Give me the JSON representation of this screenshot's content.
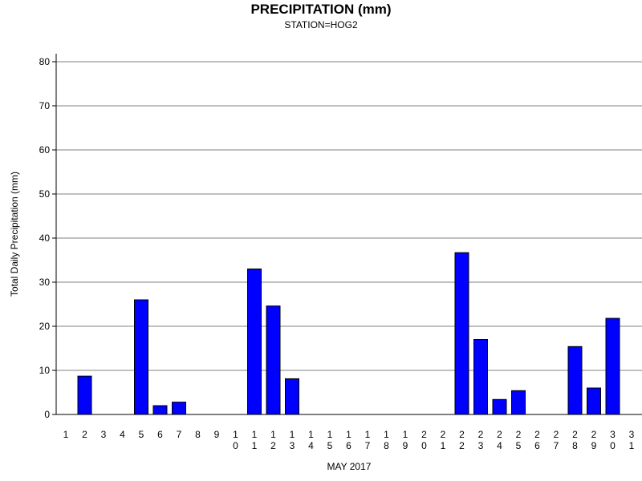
{
  "chart_data": {
    "type": "bar",
    "title": "PRECIPITATION (mm)",
    "subtitle": "STATION=HOG2",
    "xlabel": "MAY 2017",
    "ylabel": "Total Daily Precipitation (mm)",
    "ylim": [
      0,
      80
    ],
    "yticks": [
      0,
      10,
      20,
      30,
      40,
      50,
      60,
      70,
      80
    ],
    "grid": true,
    "bar_color": "#0000ff",
    "categories": [
      "1",
      "2",
      "3",
      "4",
      "5",
      "6",
      "7",
      "8",
      "9",
      "10",
      "11",
      "12",
      "13",
      "14",
      "15",
      "16",
      "17",
      "18",
      "19",
      "20",
      "21",
      "22",
      "23",
      "24",
      "25",
      "26",
      "27",
      "28",
      "29",
      "30",
      "31"
    ],
    "values": [
      0,
      8.7,
      0,
      0,
      26.0,
      2.0,
      2.8,
      0,
      0,
      0,
      33.0,
      24.6,
      8.1,
      0,
      0,
      0,
      0,
      0,
      0,
      0,
      0,
      36.7,
      17.0,
      3.4,
      5.4,
      0,
      0,
      15.4,
      6.0,
      21.8,
      0
    ]
  }
}
